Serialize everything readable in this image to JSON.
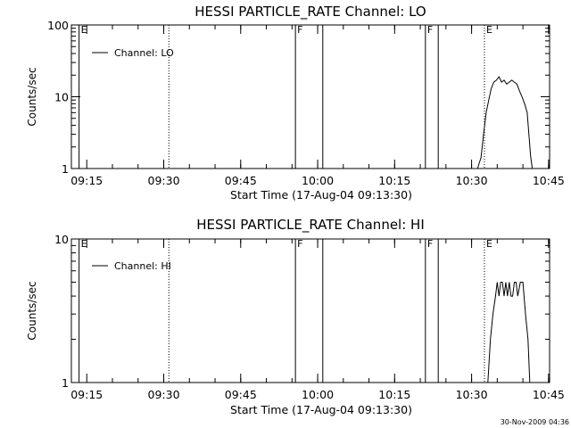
{
  "footer_timestamp": "30-Nov-2009 04:36",
  "chart_data": [
    {
      "type": "line",
      "title": "HESSI PARTICLE_RATE Channel: LO",
      "xlabel": "Start Time (17-Aug-04 09:13:30)",
      "ylabel": "Counts/sec",
      "yscale": "log",
      "ylim": [
        1,
        100
      ],
      "ytick_labels": [
        "1",
        "10",
        "100"
      ],
      "xlim_minutes": [
        -1.5,
        91.7
      ],
      "xtick_labels": [
        "09:15",
        "09:30",
        "09:45",
        "10:00",
        "10:15",
        "10:30",
        "10:45"
      ],
      "legend": {
        "location": "top-left",
        "entries": [
          "Channel: LO"
        ]
      },
      "markers": [
        {
          "label": "E",
          "time": "09:13:30",
          "style": "solid"
        },
        {
          "label": "",
          "time": "09:31:00",
          "style": "dotted"
        },
        {
          "label": "F",
          "time": "09:55:40",
          "style": "solid"
        },
        {
          "label": "",
          "time": "10:01:00",
          "style": "solid"
        },
        {
          "label": "F",
          "time": "10:21:00",
          "style": "solid"
        },
        {
          "label": "",
          "time": "10:23:30",
          "style": "solid"
        },
        {
          "label": "E",
          "time": "10:32:30",
          "style": "dotted"
        },
        {
          "label": "",
          "time": "10:50:00",
          "style": "dotted"
        }
      ],
      "series": [
        {
          "name": "Channel: LO",
          "times": [
            "10:31:10",
            "10:31:30",
            "10:31:50",
            "10:32:20",
            "10:32:50",
            "10:33:20",
            "10:33:50",
            "10:34:20",
            "10:34:50",
            "10:35:20",
            "10:35:50",
            "10:36:20",
            "10:36:50",
            "10:37:20",
            "10:37:50",
            "10:38:20",
            "10:38:50",
            "10:39:20",
            "10:39:50",
            "10:40:20",
            "10:40:50",
            "10:41:10",
            "10:41:30",
            "10:41:50"
          ],
          "values": [
            1,
            1.2,
            1.4,
            3,
            6,
            9,
            13,
            16,
            17,
            19,
            16,
            17,
            15,
            16,
            17,
            16,
            15,
            12,
            10,
            8,
            6,
            3,
            1.5,
            1
          ]
        }
      ]
    },
    {
      "type": "line",
      "title": "HESSI PARTICLE_RATE Channel: HI",
      "xlabel": "Start Time (17-Aug-04 09:13:30)",
      "ylabel": "Counts/sec",
      "yscale": "log",
      "ylim": [
        1,
        10
      ],
      "ytick_labels": [
        "1",
        "10"
      ],
      "xlim_minutes": [
        -1.5,
        91.7
      ],
      "xtick_labels": [
        "09:15",
        "09:30",
        "09:45",
        "10:00",
        "10:15",
        "10:30",
        "10:45"
      ],
      "legend": {
        "location": "top-left",
        "entries": [
          "Channel: HI"
        ]
      },
      "markers": [
        {
          "label": "E",
          "time": "09:13:30",
          "style": "solid"
        },
        {
          "label": "",
          "time": "09:31:00",
          "style": "dotted"
        },
        {
          "label": "F",
          "time": "09:55:40",
          "style": "solid"
        },
        {
          "label": "",
          "time": "10:01:00",
          "style": "solid"
        },
        {
          "label": "F",
          "time": "10:21:00",
          "style": "solid"
        },
        {
          "label": "",
          "time": "10:23:30",
          "style": "solid"
        },
        {
          "label": "E",
          "time": "10:32:30",
          "style": "dotted"
        },
        {
          "label": "",
          "time": "10:50:00",
          "style": "dotted"
        }
      ],
      "series": [
        {
          "name": "Channel: HI",
          "times": [
            "10:33:10",
            "10:33:40",
            "10:34:10",
            "10:34:40",
            "10:35:00",
            "10:35:20",
            "10:35:40",
            "10:36:00",
            "10:36:20",
            "10:36:40",
            "10:37:00",
            "10:37:20",
            "10:37:40",
            "10:38:00",
            "10:38:20",
            "10:38:40",
            "10:39:00",
            "10:39:30",
            "10:40:00",
            "10:40:30",
            "10:41:00",
            "10:41:20"
          ],
          "values": [
            1,
            2,
            3,
            4,
            5,
            4,
            5,
            5,
            4,
            5,
            4,
            5,
            4,
            4,
            5,
            5,
            4,
            5,
            5,
            3,
            2,
            1
          ]
        }
      ]
    }
  ]
}
